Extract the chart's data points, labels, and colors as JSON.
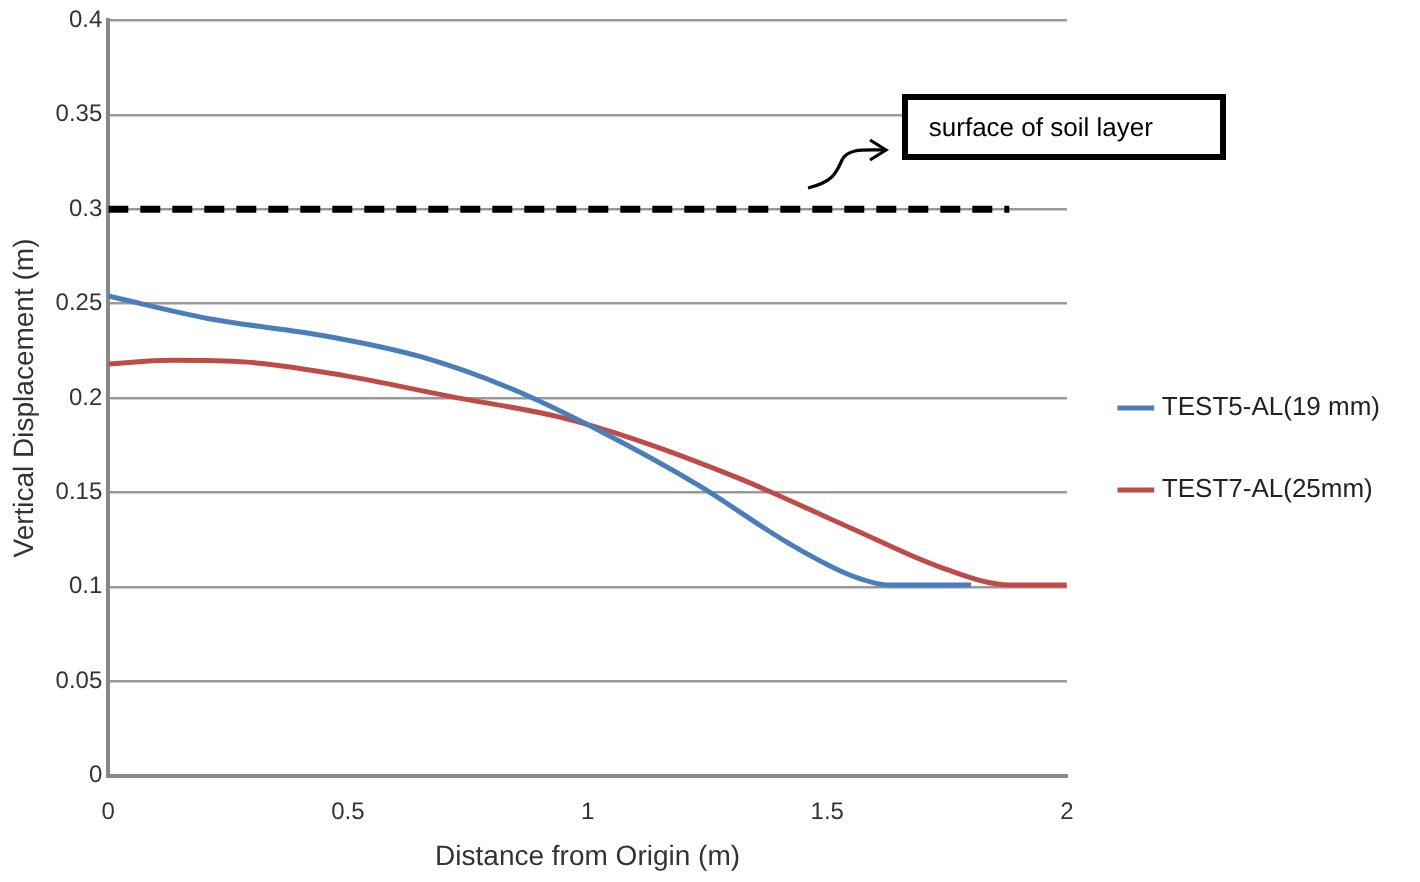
{
  "chart_data": {
    "type": "line",
    "xlabel": "Distance from Origin (m)",
    "ylabel": "Vertical Displacement (m)",
    "xlim": [
      0,
      2
    ],
    "xticks": [
      0,
      0.5,
      1,
      1.5,
      2
    ],
    "ylim": [
      0,
      0.4
    ],
    "yticks": [
      0,
      0.05,
      0.1,
      0.15,
      0.2,
      0.25,
      0.3,
      0.35,
      0.4
    ],
    "grid": "y",
    "legend": "right",
    "marker": "none",
    "series": [
      {
        "name": "TEST5-AL(19 mm)",
        "color": "#4a7ebb",
        "x": [
          0,
          0.21,
          0.45,
          0.65,
          0.84,
          1.03,
          1.23,
          1.42,
          1.55,
          1.63,
          1.8
        ],
        "values": [
          0.254,
          0.242,
          0.233,
          0.222,
          0.205,
          0.182,
          0.154,
          0.123,
          0.106,
          0.101,
          0.101
        ]
      },
      {
        "name": "TEST7-AL(25mm)",
        "color": "#be4b48",
        "x": [
          0,
          0.13,
          0.29,
          0.49,
          0.71,
          0.94,
          1.1,
          1.32,
          1.55,
          1.74,
          1.88,
          2
        ],
        "values": [
          0.218,
          0.22,
          0.219,
          0.212,
          0.201,
          0.19,
          0.178,
          0.157,
          0.131,
          0.11,
          0.101,
          0.101
        ]
      },
      {
        "color": "#000000",
        "line_style": "dashed",
        "x": [
          0,
          1.88
        ],
        "values": [
          0.3,
          0.3
        ]
      }
    ],
    "annotations": [
      "surface of soil layer"
    ]
  }
}
